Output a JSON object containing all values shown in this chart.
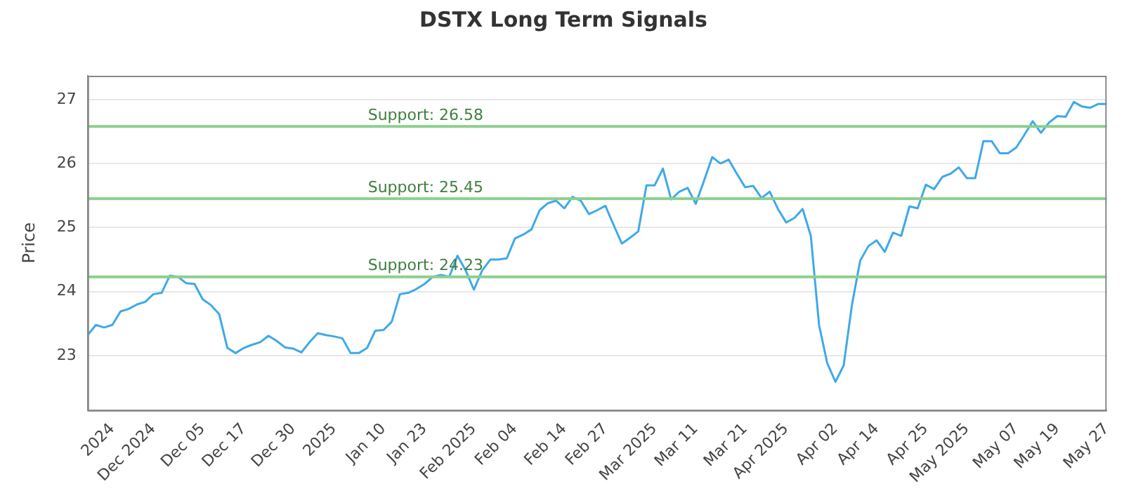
{
  "chart_data": {
    "type": "line",
    "title": "DSTX Long Term Signals",
    "ylabel": "Price",
    "categories": [
      null,
      null,
      null,
      "2024",
      null,
      null,
      null,
      null,
      "Dec 2024",
      null,
      null,
      null,
      null,
      null,
      "Dec 05",
      null,
      null,
      null,
      null,
      "Dec 17",
      null,
      null,
      null,
      null,
      null,
      "Dec 30",
      null,
      null,
      null,
      null,
      "2025",
      null,
      null,
      null,
      null,
      null,
      "Jan 10",
      null,
      null,
      null,
      null,
      "Jan 23",
      null,
      null,
      null,
      null,
      null,
      "Feb 2025",
      null,
      null,
      null,
      null,
      "Feb 04",
      null,
      null,
      null,
      null,
      null,
      "Feb 14",
      null,
      null,
      null,
      null,
      "Feb 27",
      null,
      null,
      null,
      null,
      null,
      "Mar 2025",
      null,
      null,
      null,
      null,
      "Mar 11",
      null,
      null,
      null,
      null,
      null,
      "Mar 21",
      null,
      null,
      null,
      null,
      "Apr 2025",
      null,
      null,
      null,
      null,
      null,
      "Apr 02",
      null,
      null,
      null,
      null,
      "Apr 14",
      null,
      null,
      null,
      null,
      null,
      "Apr 25",
      null,
      null,
      null,
      null,
      "May 2025",
      null,
      null,
      null,
      null,
      null,
      "May 07",
      null,
      null,
      null,
      null,
      "May 19",
      null,
      null,
      null,
      null,
      null,
      "May 27"
    ],
    "series": [
      {
        "color": "#3fa9e8",
        "values": [
          23.32,
          23.48,
          23.44,
          23.48,
          23.69,
          23.73,
          23.8,
          23.84,
          23.96,
          23.98,
          24.25,
          24.23,
          24.13,
          24.12,
          23.88,
          23.79,
          23.65,
          23.12,
          23.04,
          23.12,
          23.17,
          23.21,
          23.31,
          23.23,
          23.13,
          23.11,
          23.05,
          23.21,
          23.35,
          23.32,
          23.3,
          23.27,
          23.04,
          23.04,
          23.12,
          23.39,
          23.4,
          23.53,
          23.96,
          23.98,
          24.04,
          24.12,
          24.23,
          24.26,
          24.23,
          24.56,
          24.33,
          24.03,
          24.33,
          24.5,
          24.5,
          24.52,
          24.83,
          24.89,
          24.97,
          25.27,
          25.38,
          25.42,
          25.3,
          25.48,
          25.42,
          25.21,
          25.27,
          25.34,
          25.04,
          24.75,
          24.84,
          24.94,
          25.66,
          25.66,
          25.92,
          25.44,
          25.56,
          25.62,
          25.37,
          25.73,
          26.1,
          26.0,
          26.06,
          25.84,
          25.63,
          25.65,
          25.46,
          25.56,
          25.29,
          25.08,
          25.15,
          25.29,
          24.87,
          23.48,
          22.88,
          22.59,
          22.85,
          23.79,
          24.48,
          24.71,
          24.8,
          24.62,
          24.92,
          24.87,
          25.33,
          25.3,
          25.67,
          25.6,
          25.79,
          25.84,
          25.94,
          25.77,
          25.77,
          26.35,
          26.35,
          26.16,
          26.16,
          26.25,
          26.45,
          26.66,
          26.48,
          26.64,
          26.74,
          26.73,
          26.96,
          26.89,
          26.87,
          26.93,
          26.93
        ]
      }
    ],
    "ylim": [
      22.15,
      27.37
    ],
    "yticks": [
      23,
      24,
      25,
      26,
      27
    ],
    "grid": "y",
    "legend": false,
    "marker": "none",
    "line_style": "solid",
    "ref_lines": [
      {
        "axis": "y",
        "value": 26.58,
        "label": "Support: 26.58",
        "color": "#8ccf8c"
      },
      {
        "axis": "y",
        "value": 25.45,
        "label": "Support: 25.45",
        "color": "#8ccf8c"
      },
      {
        "axis": "y",
        "value": 24.23,
        "label": "Support: 24.23",
        "color": "#8ccf8c"
      }
    ]
  }
}
